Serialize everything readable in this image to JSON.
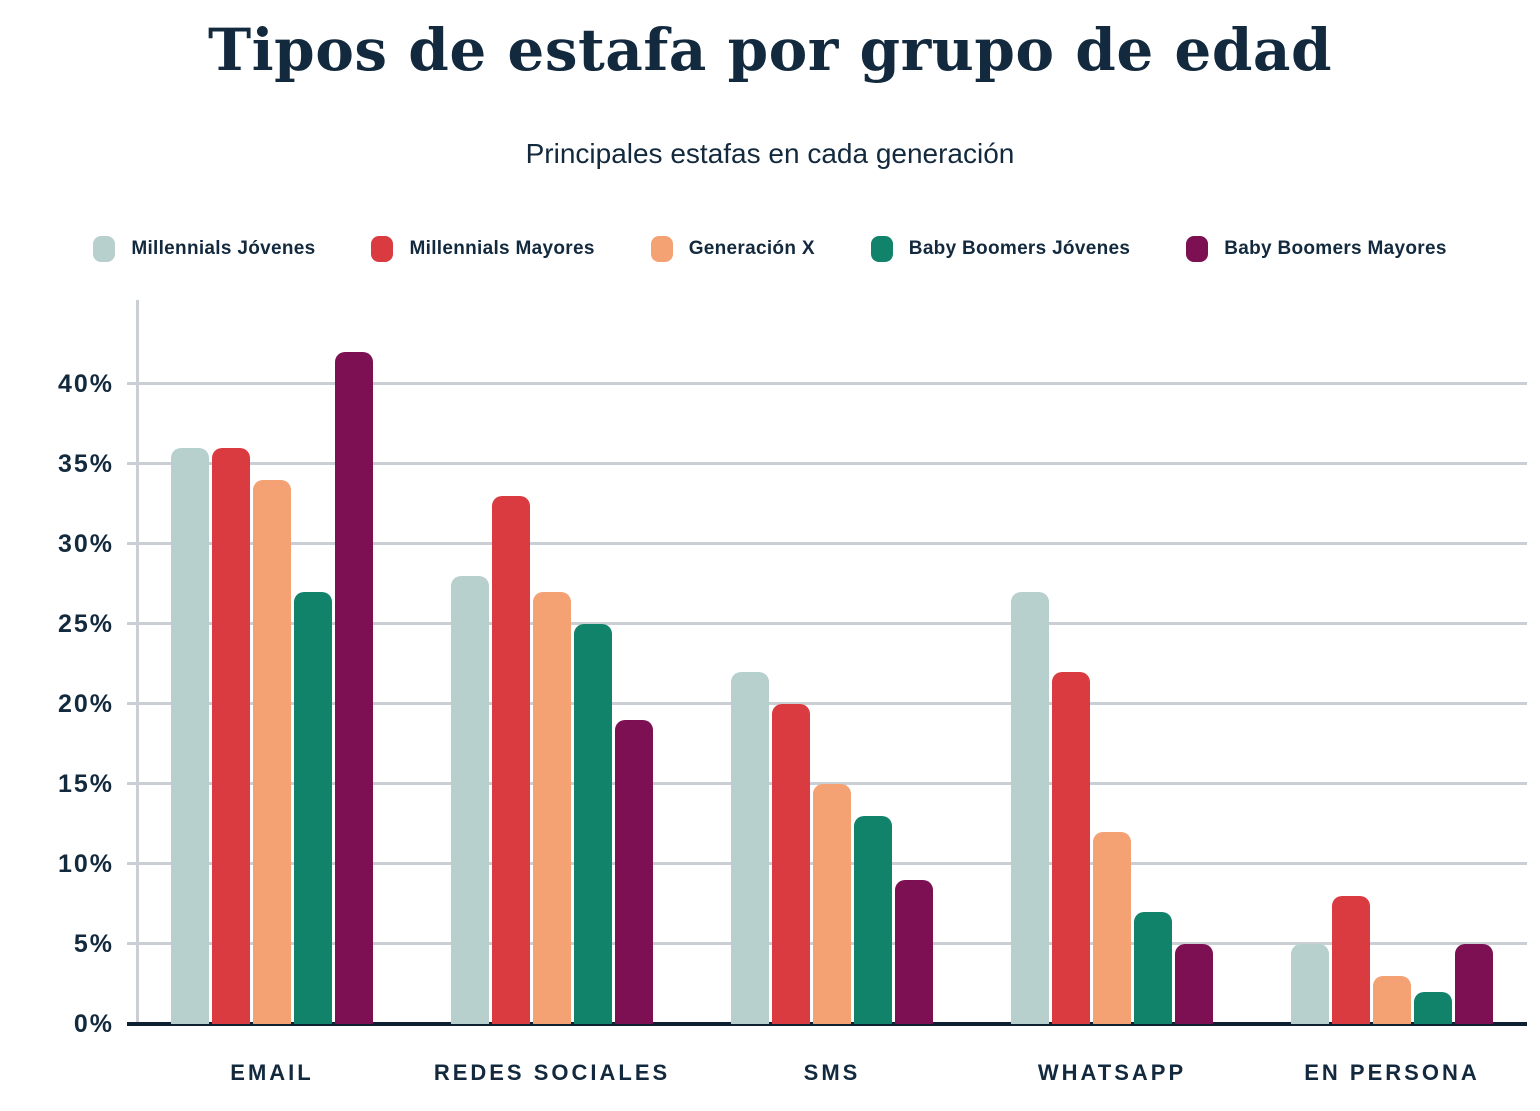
{
  "title": "Tipos de estafa por grupo de edad",
  "subtitle": "Principales estafas en cada generación",
  "colors": {
    "text": "#13293d",
    "grid": "#c9cfd5",
    "axis": "#0e2133",
    "background": "#ffffff"
  },
  "legend": [
    {
      "label": "Millennials Jóvenes",
      "color": "#b8d0cd"
    },
    {
      "label": "Millennials Mayores",
      "color": "#d93b40"
    },
    {
      "label": "Generación X",
      "color": "#f4a173"
    },
    {
      "label": "Baby Boomers Jóvenes",
      "color": "#11836a"
    },
    {
      "label": "Baby Boomers Mayores",
      "color": "#7c1053"
    }
  ],
  "chart_data": {
    "type": "bar",
    "title": "Tipos de estafa por grupo de edad",
    "subtitle": "Principales estafas en cada generación",
    "categories": [
      "EMAIL",
      "REDES SOCIALES",
      "SMS",
      "WHATSAPP",
      "EN PERSONA"
    ],
    "series": [
      {
        "name": "Millennials Jóvenes",
        "color": "#b8d0cd",
        "values": [
          36,
          28,
          22,
          27,
          5
        ]
      },
      {
        "name": "Millennials Mayores",
        "color": "#d93b40",
        "values": [
          36,
          33,
          20,
          22,
          8
        ]
      },
      {
        "name": "Generación X",
        "color": "#f4a173",
        "values": [
          34,
          27,
          15,
          12,
          3
        ]
      },
      {
        "name": "Baby Boomers Jóvenes",
        "color": "#11836a",
        "values": [
          27,
          25,
          13,
          7,
          2
        ]
      },
      {
        "name": "Baby Boomers Mayores",
        "color": "#7c1053",
        "values": [
          42,
          19,
          9,
          5,
          5
        ]
      }
    ],
    "xlabel": "",
    "ylabel": "",
    "y_ticks": [
      "0%",
      "5%",
      "10%",
      "15%",
      "20%",
      "25%",
      "30%",
      "35%",
      "40%"
    ],
    "y_tick_values": [
      0,
      5,
      10,
      15,
      20,
      25,
      30,
      35,
      40
    ],
    "ylim": [
      0,
      45
    ],
    "grid": true,
    "legend_position": "top",
    "units": "percent"
  }
}
